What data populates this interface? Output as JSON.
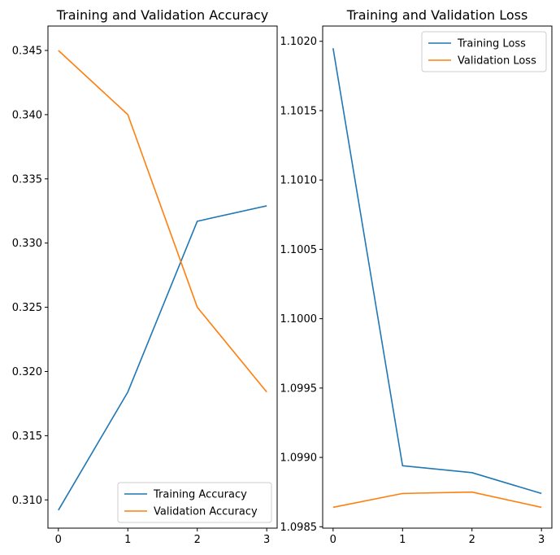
{
  "chart_data": [
    {
      "type": "line",
      "title": "Training and Validation Accuracy",
      "x": [
        0,
        1,
        2,
        3
      ],
      "xlim": [
        -0.15,
        3.15
      ],
      "ylim": [
        0.3078,
        0.3469
      ],
      "xticks": [
        "0",
        "1",
        "2",
        "3"
      ],
      "yticks": [
        0.31,
        0.315,
        0.32,
        0.325,
        0.33,
        0.335,
        0.34,
        0.345
      ],
      "ytick_labels": [
        "0.310",
        "0.315",
        "0.320",
        "0.325",
        "0.330",
        "0.335",
        "0.340",
        "0.345"
      ],
      "legend_loc": "lower right",
      "grid": false,
      "series": [
        {
          "name": "Training Accuracy",
          "color": "#1f77b4",
          "values": [
            0.3092,
            0.3184,
            0.3317,
            0.3329
          ]
        },
        {
          "name": "Validation Accuracy",
          "color": "#ff7f0e",
          "values": [
            0.345,
            0.34,
            0.325,
            0.3184
          ]
        }
      ]
    },
    {
      "type": "line",
      "title": "Training and Validation Loss",
      "x": [
        0,
        1,
        2,
        3
      ],
      "xlim": [
        -0.15,
        3.15
      ],
      "ylim": [
        1.09849,
        1.10211
      ],
      "xticks": [
        "0",
        "1",
        "2",
        "3"
      ],
      "yticks": [
        1.0985,
        1.099,
        1.0995,
        1.1,
        1.1005,
        1.101,
        1.1015,
        1.102
      ],
      "ytick_labels": [
        "1.0985",
        "1.0990",
        "1.0995",
        "1.1000",
        "1.1005",
        "1.1010",
        "1.1015",
        "1.1020"
      ],
      "legend_loc": "upper right",
      "grid": false,
      "series": [
        {
          "name": "Training Loss",
          "color": "#1f77b4",
          "values": [
            1.10195,
            1.09894,
            1.09889,
            1.09874
          ]
        },
        {
          "name": "Validation Loss",
          "color": "#ff7f0e",
          "values": [
            1.09864,
            1.09874,
            1.09875,
            1.09864
          ]
        }
      ]
    }
  ]
}
